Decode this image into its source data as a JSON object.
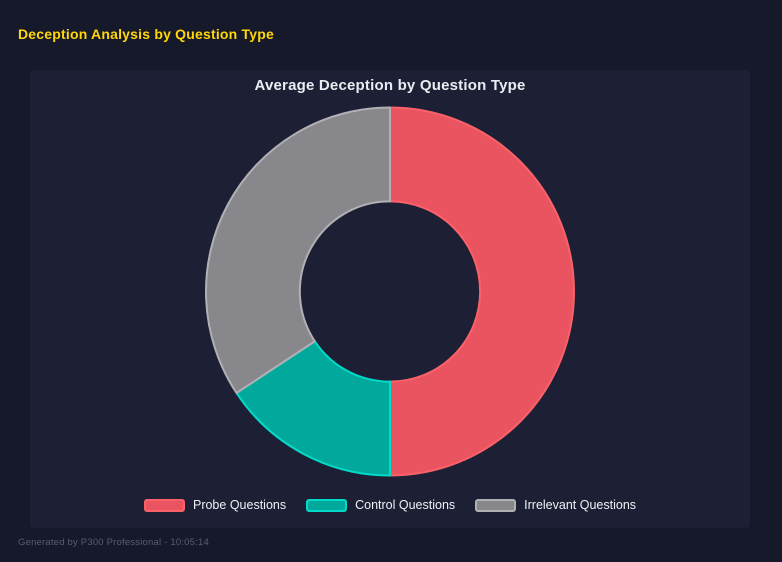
{
  "page": {
    "title": "Deception Analysis by Question Type",
    "title_color": "#ffd60a",
    "background": "#161929"
  },
  "panel": {
    "background": "#1d2034"
  },
  "chart": {
    "title": "Average Deception by Question Type",
    "title_color": "#e9edf3"
  },
  "chart_data": {
    "type": "doughnut",
    "title": "Average Deception by Question Type",
    "labels": [
      "Probe Questions",
      "Control Questions",
      "Irrelevant Questions"
    ],
    "values": [
      50,
      15.7,
      34.3
    ],
    "unit": "percent_of_total",
    "colors": [
      "#ea5460",
      "#00a99c",
      "#88888c"
    ],
    "border_colors": [
      "#fb6168",
      "#00dcc9",
      "#b0b0b5"
    ],
    "cutout_ratio": 0.49,
    "start_angle_deg": 0,
    "direction": "clockwise",
    "legend_position": "bottom"
  },
  "footer": {
    "text": "Generated by P300 Professional - 10:05:14"
  }
}
